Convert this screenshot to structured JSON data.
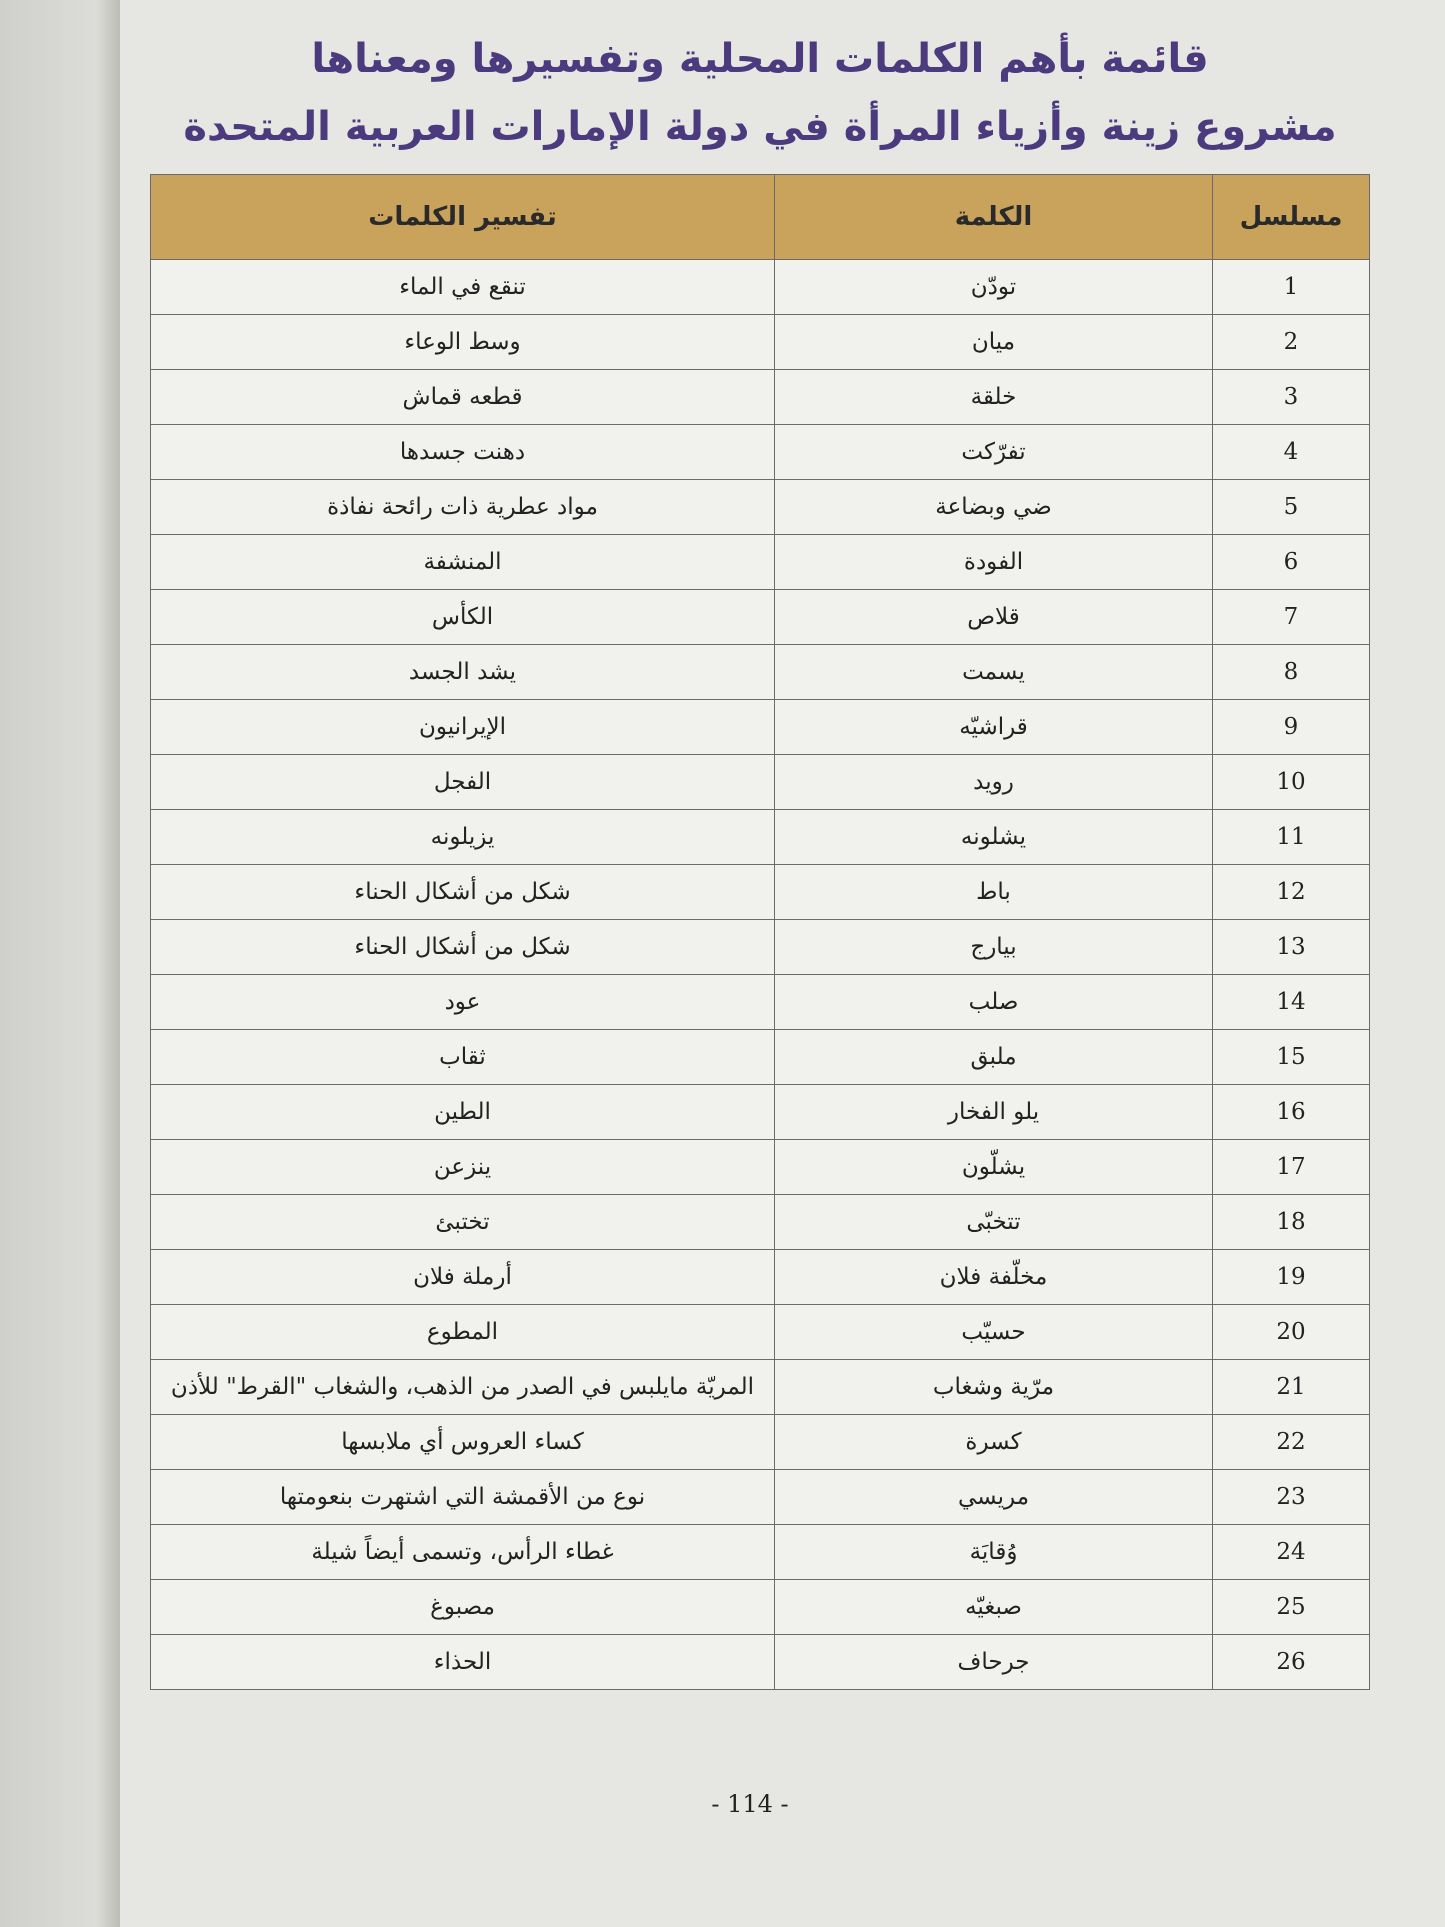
{
  "header": {
    "title_line1": "قائمة بأهم الكلمات المحلية وتفسيرها ومعناها",
    "title_line2": "مشروع زينة وأزياء المرأة في دولة الإمارات العربية المتحدة"
  },
  "table": {
    "columns": [
      "مسلسل",
      "الكلمة",
      "تفسير الكلمات"
    ],
    "rows": [
      [
        1,
        "تودّن",
        "تنقع في الماء"
      ],
      [
        2,
        "ميان",
        "وسط الوعاء"
      ],
      [
        3,
        "خلقة",
        "قطعه قماش"
      ],
      [
        4,
        "تفرّكت",
        "دهنت جسدها"
      ],
      [
        5,
        "ضي وبضاعة",
        "مواد عطرية ذات رائحة نفاذة"
      ],
      [
        6,
        "الفودة",
        "المنشفة"
      ],
      [
        7,
        "قلاص",
        "الكأس"
      ],
      [
        8,
        "يسمت",
        "يشد الجسد"
      ],
      [
        9,
        "قراشيّه",
        "الإيرانيون"
      ],
      [
        10,
        "رويد",
        "الفجل"
      ],
      [
        11,
        "يشلونه",
        "يزيلونه"
      ],
      [
        12,
        "باط",
        "شكل من أشكال الحناء"
      ],
      [
        13,
        "بيارج",
        "شكل من أشكال الحناء"
      ],
      [
        14,
        "صلب",
        "عود"
      ],
      [
        15,
        "ملبق",
        "ثقاب"
      ],
      [
        16,
        "يلو الفخار",
        "الطين"
      ],
      [
        17,
        "يشلّون",
        "ينزعن"
      ],
      [
        18,
        "تتخبّى",
        "تختبئ"
      ],
      [
        19,
        "مخلّفة فلان",
        "أرملة فلان"
      ],
      [
        20,
        "حسيّب",
        "المطوع"
      ],
      [
        21,
        "مرّية وشغاب",
        "المريّة مايلبس في الصدر من الذهب، والشغاب \"القرط\" للأذن"
      ],
      [
        22,
        "كسرة",
        "كساء العروس أي ملابسها"
      ],
      [
        23,
        "مريسي",
        "نوع من الأقمشة التي اشتهرت بنعومتها"
      ],
      [
        24,
        "وُقايَة",
        "غطاء الرأس، وتسمى أيضاً شيلة"
      ],
      [
        25,
        "صبغيّه",
        "مصبوغ"
      ],
      [
        26,
        "جرحاف",
        "الحذاء"
      ]
    ]
  },
  "footer": {
    "page_number": "- 114 -"
  }
}
